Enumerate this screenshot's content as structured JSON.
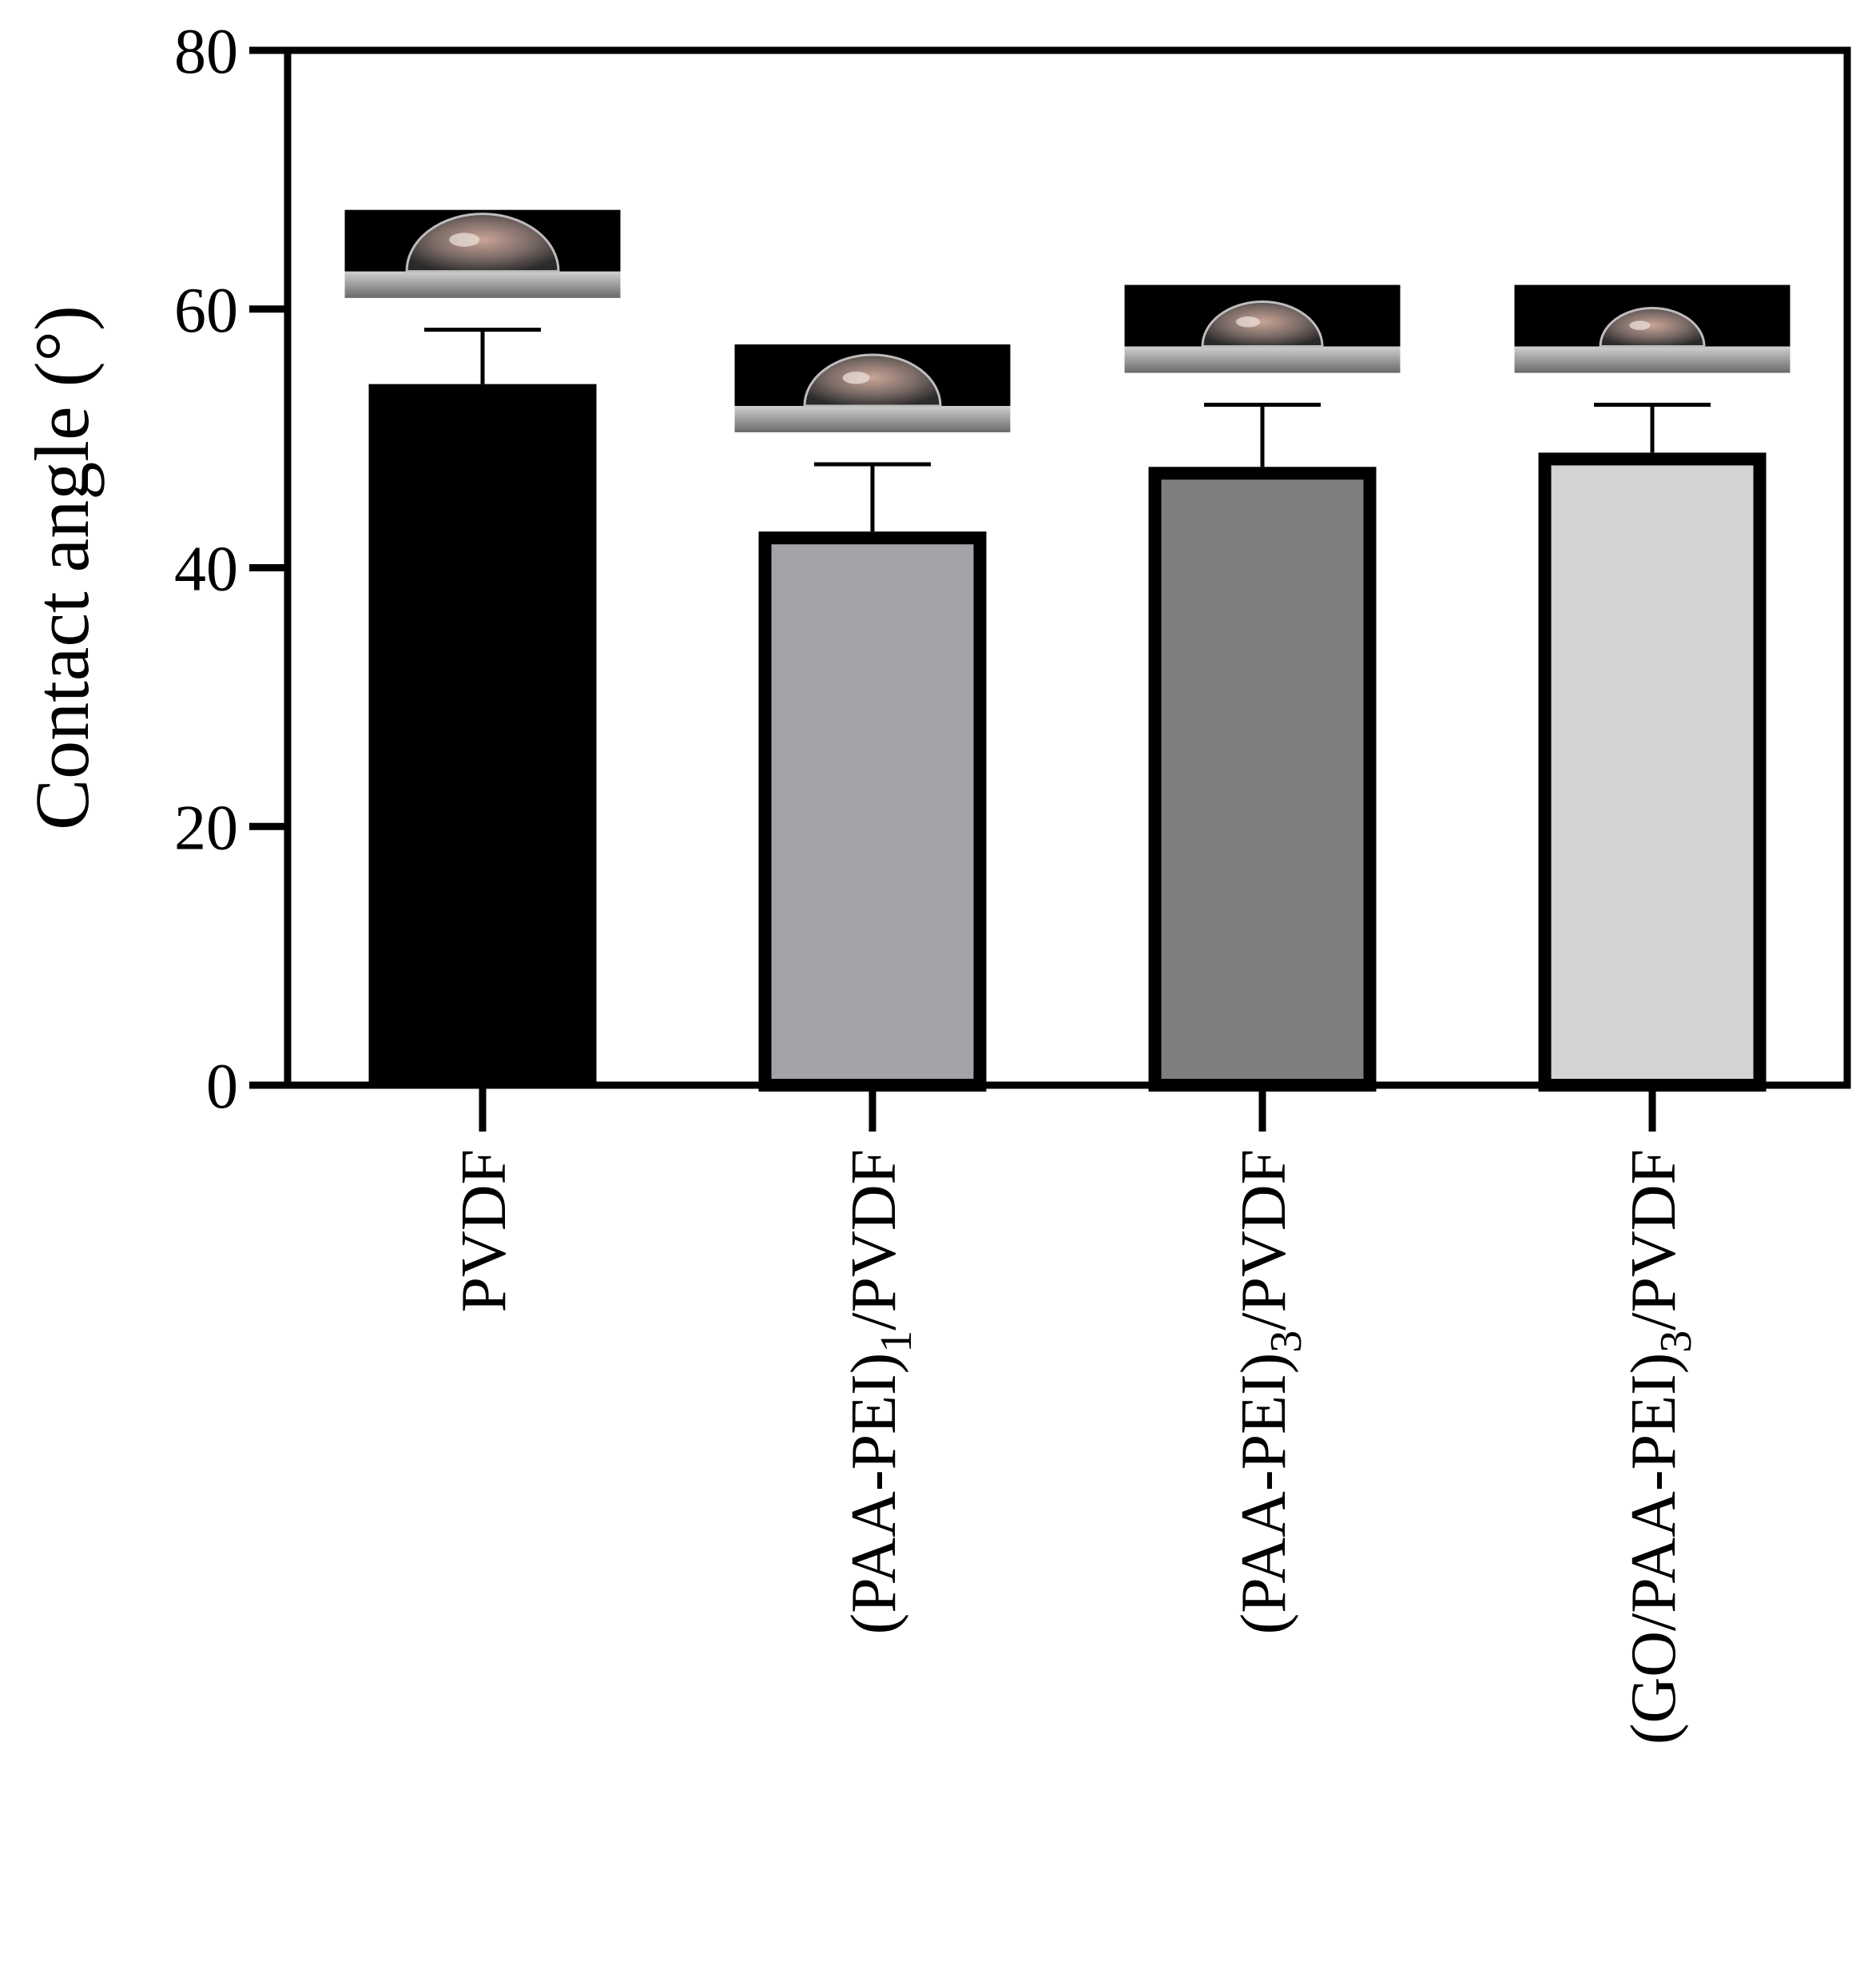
{
  "chart_data": {
    "type": "bar",
    "ylabel": "Contact angle (°)",
    "xlabel": "",
    "ylim": [
      0,
      80
    ],
    "yticks": [
      0,
      20,
      40,
      60,
      80
    ],
    "grid": false,
    "categories": [
      {
        "pre": "PVDF",
        "sub": "",
        "post": ""
      },
      {
        "pre": "(PAA-PEI)",
        "sub": "1",
        "post": "/PVDF"
      },
      {
        "pre": "(PAA-PEI)",
        "sub": "3",
        "post": "/PVDF"
      },
      {
        "pre": "(GO/PAA-PEI)",
        "sub": "3",
        "post": "/PVDF"
      }
    ],
    "values": [
      54.2,
      42.8,
      47.8,
      48.9
    ],
    "errors": [
      4.2,
      5.2,
      4.8,
      3.7
    ],
    "bar_fills": [
      "#000000",
      "#a3a3a7",
      "#7f7f7f",
      "#d3d3d3"
    ],
    "insets": [
      "droplet-image",
      "droplet-image",
      "droplet-image",
      "droplet-image"
    ]
  }
}
